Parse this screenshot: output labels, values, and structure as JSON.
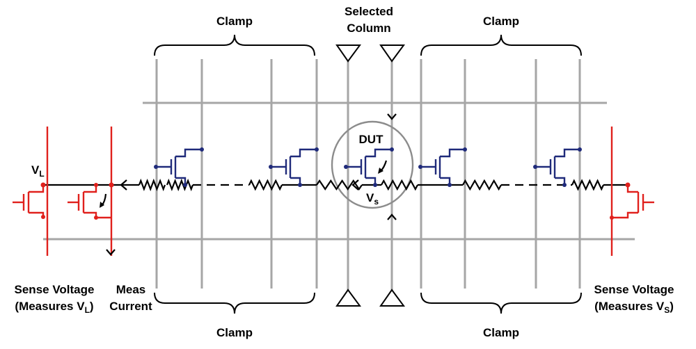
{
  "labels": {
    "clamp_top_left": "Clamp",
    "clamp_top_right": "Clamp",
    "clamp_bottom_left": "Clamp",
    "clamp_bottom_right": "Clamp",
    "selected_column_line1": "Selected",
    "selected_column_line2": "Column",
    "dut": "DUT",
    "vl_main": "V",
    "vl_sub": "L",
    "vs_main": "V",
    "vs_sub": "s",
    "sense_left_line1": "Sense Voltage",
    "sense_left_line2_pre": "(Measures V",
    "sense_left_line2_sub": "L",
    "sense_left_line2_post": ")",
    "meas_line1": "Meas",
    "meas_line2": "Current",
    "sense_right_line1": "Sense Voltage",
    "sense_right_line2_pre": "(Measures V",
    "sense_right_line2_sub": "S",
    "sense_right_line2_post": ")"
  },
  "colors": {
    "grid": "#a6a6a6",
    "sense_circuit": "#e0201c",
    "array_transistor": "#1f2a7a",
    "wire": "#000000"
  }
}
